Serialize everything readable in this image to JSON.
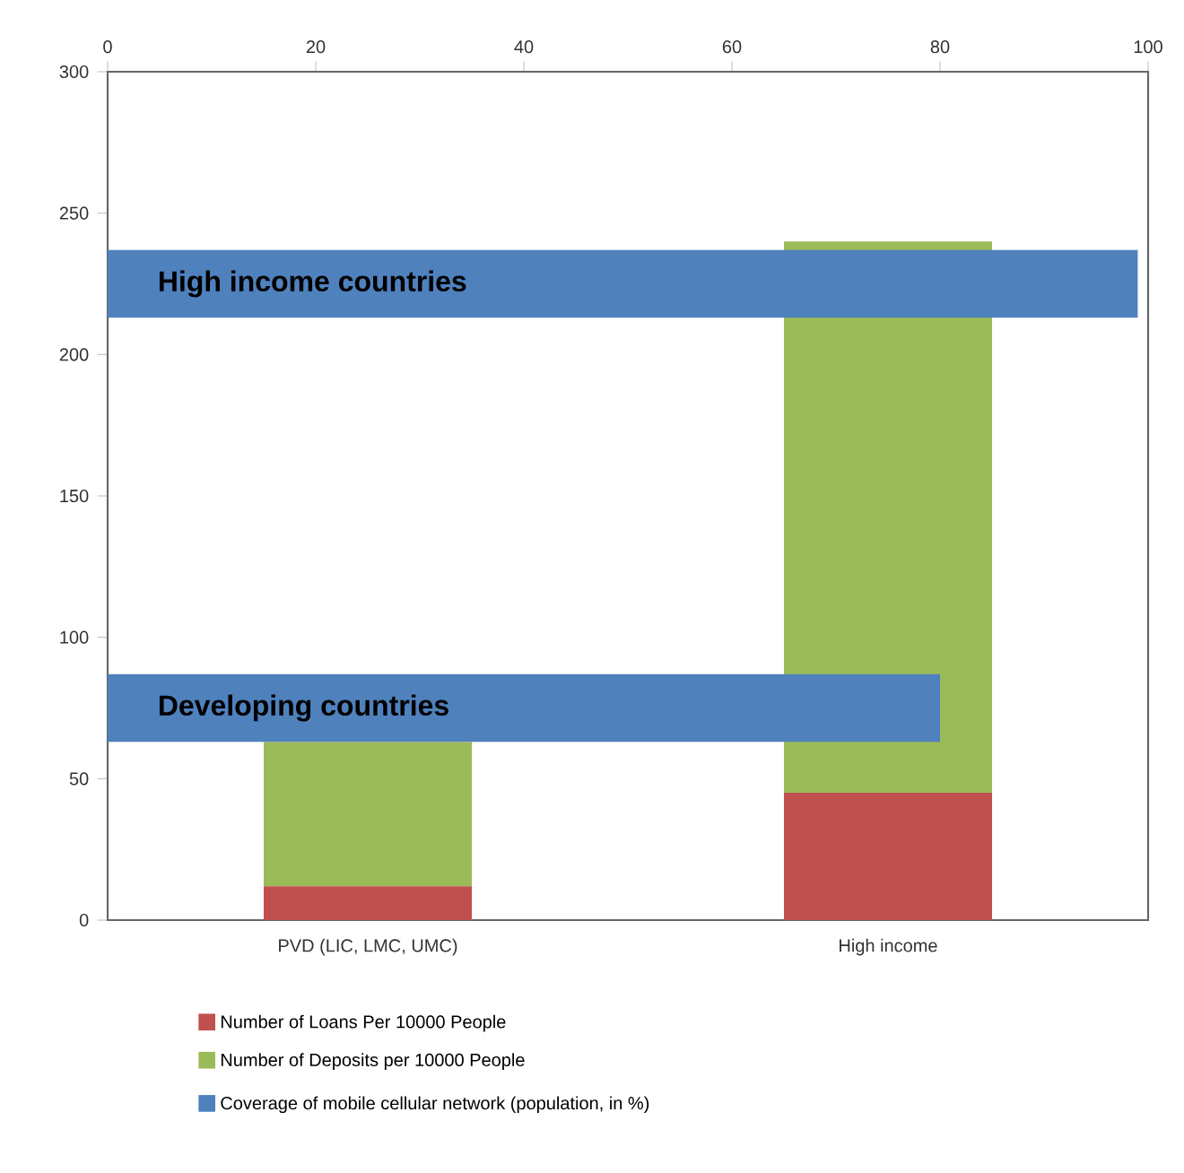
{
  "chart_data": [
    {
      "type": "bar",
      "stacked": true,
      "categories": [
        "PVD (LIC, LMC, UMC)",
        "High income"
      ],
      "series": [
        {
          "name": "Number of Loans Per 10000 People",
          "color": "#c0504d",
          "values": [
            12,
            45
          ]
        },
        {
          "name": "Number of Deposits per 10000 People",
          "color": "#9bbb59",
          "values": [
            51,
            195
          ]
        }
      ],
      "ylim": [
        0,
        300
      ],
      "yticks": [
        0,
        50,
        100,
        150,
        200,
        250,
        300
      ],
      "grid": false,
      "legend": "bottom"
    },
    {
      "type": "bar",
      "orientation": "horizontal",
      "categories": [
        "High income countries",
        "Developing countries"
      ],
      "series": [
        {
          "name": "Coverage of mobile cellular network (population, in %)",
          "color": "#4f81bd",
          "axis": "x2",
          "values": [
            99,
            80
          ]
        }
      ],
      "x2lim": [
        0,
        100
      ],
      "x2ticks": [
        0,
        20,
        40,
        60,
        80,
        100
      ],
      "grid": false,
      "legend": "bottom"
    }
  ]
}
